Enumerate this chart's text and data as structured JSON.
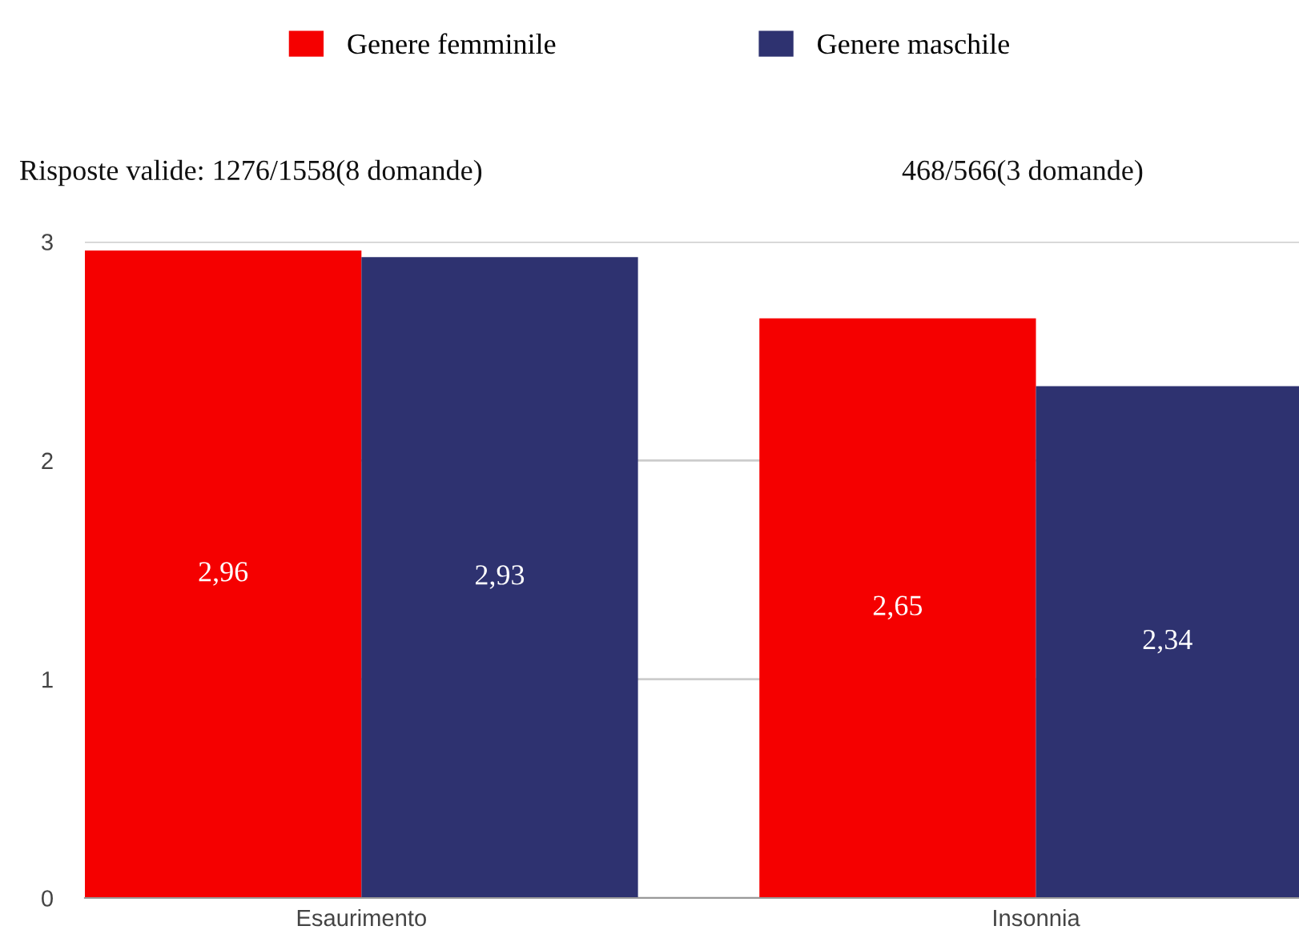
{
  "chart_data": {
    "type": "bar",
    "categories": [
      "Esaurimento",
      "Insonnia"
    ],
    "series": [
      {
        "name": "Genere femminile",
        "color": "#f50000",
        "values": [
          2.96,
          2.65
        ],
        "value_labels": [
          "2,96",
          "2,65"
        ]
      },
      {
        "name": "Genere maschile",
        "color": "#2e3270",
        "values": [
          2.93,
          2.34
        ],
        "value_labels": [
          "2,93",
          "2,34"
        ]
      }
    ],
    "ylim": [
      0,
      3
    ],
    "yticks": [
      0,
      1,
      2,
      3
    ],
    "grid": "y",
    "legend": "top",
    "annotations": [
      "Risposte valide: 1276/1558(8 domande)",
      "468/566(3 domande)"
    ]
  }
}
